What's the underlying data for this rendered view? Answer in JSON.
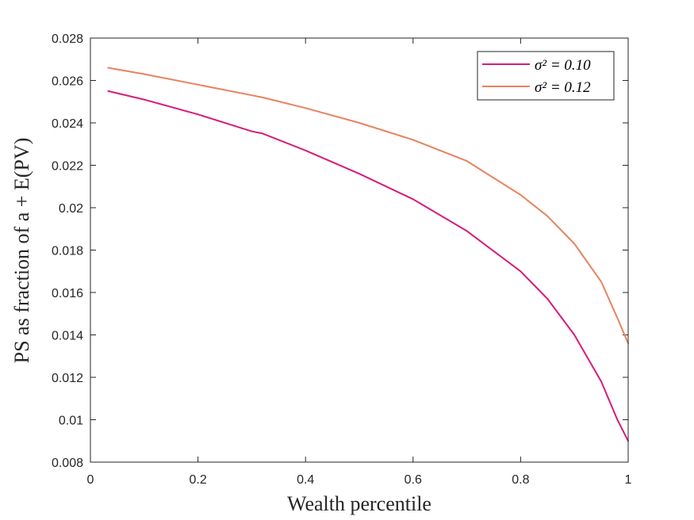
{
  "chart_data": {
    "type": "line",
    "xlabel": "Wealth percentile",
    "ylabel": "PS as fraction of a + E(PV)",
    "xlim": [
      0,
      1
    ],
    "ylim": [
      0.008,
      0.028
    ],
    "xticks": [
      0,
      0.2,
      0.4,
      0.6,
      0.8,
      1
    ],
    "xtick_labels": [
      "0",
      "0.2",
      "0.4",
      "0.6",
      "0.8",
      "1"
    ],
    "yticks": [
      0.008,
      0.01,
      0.012,
      0.014,
      0.016,
      0.018,
      0.02,
      0.022,
      0.024,
      0.026,
      0.028
    ],
    "ytick_labels": [
      "0.008",
      "0.01",
      "0.012",
      "0.014",
      "0.016",
      "0.018",
      "0.02",
      "0.022",
      "0.024",
      "0.026",
      "0.028"
    ],
    "grid": false,
    "legend_position": "top-right",
    "series": [
      {
        "name": "σ² = 0.10",
        "color": "#d81b7a",
        "x": [
          0.033,
          0.1,
          0.2,
          0.3,
          0.32,
          0.4,
          0.5,
          0.6,
          0.7,
          0.8,
          0.85,
          0.9,
          0.95,
          0.98,
          1.0
        ],
        "y": [
          0.0255,
          0.0251,
          0.0244,
          0.0236,
          0.0235,
          0.0227,
          0.0216,
          0.0204,
          0.0189,
          0.017,
          0.0157,
          0.014,
          0.0118,
          0.01,
          0.009
        ]
      },
      {
        "name": "σ² = 0.12",
        "color": "#e8825f",
        "x": [
          0.033,
          0.1,
          0.2,
          0.3,
          0.32,
          0.4,
          0.5,
          0.6,
          0.7,
          0.8,
          0.85,
          0.9,
          0.95,
          0.98,
          1.0
        ],
        "y": [
          0.0266,
          0.0263,
          0.0258,
          0.0253,
          0.0252,
          0.0247,
          0.024,
          0.0232,
          0.0222,
          0.0206,
          0.0196,
          0.0183,
          0.0165,
          0.0148,
          0.0136
        ]
      }
    ],
    "legend": {
      "entries": [
        "σ² = 0.10",
        "σ² = 0.12"
      ]
    }
  }
}
